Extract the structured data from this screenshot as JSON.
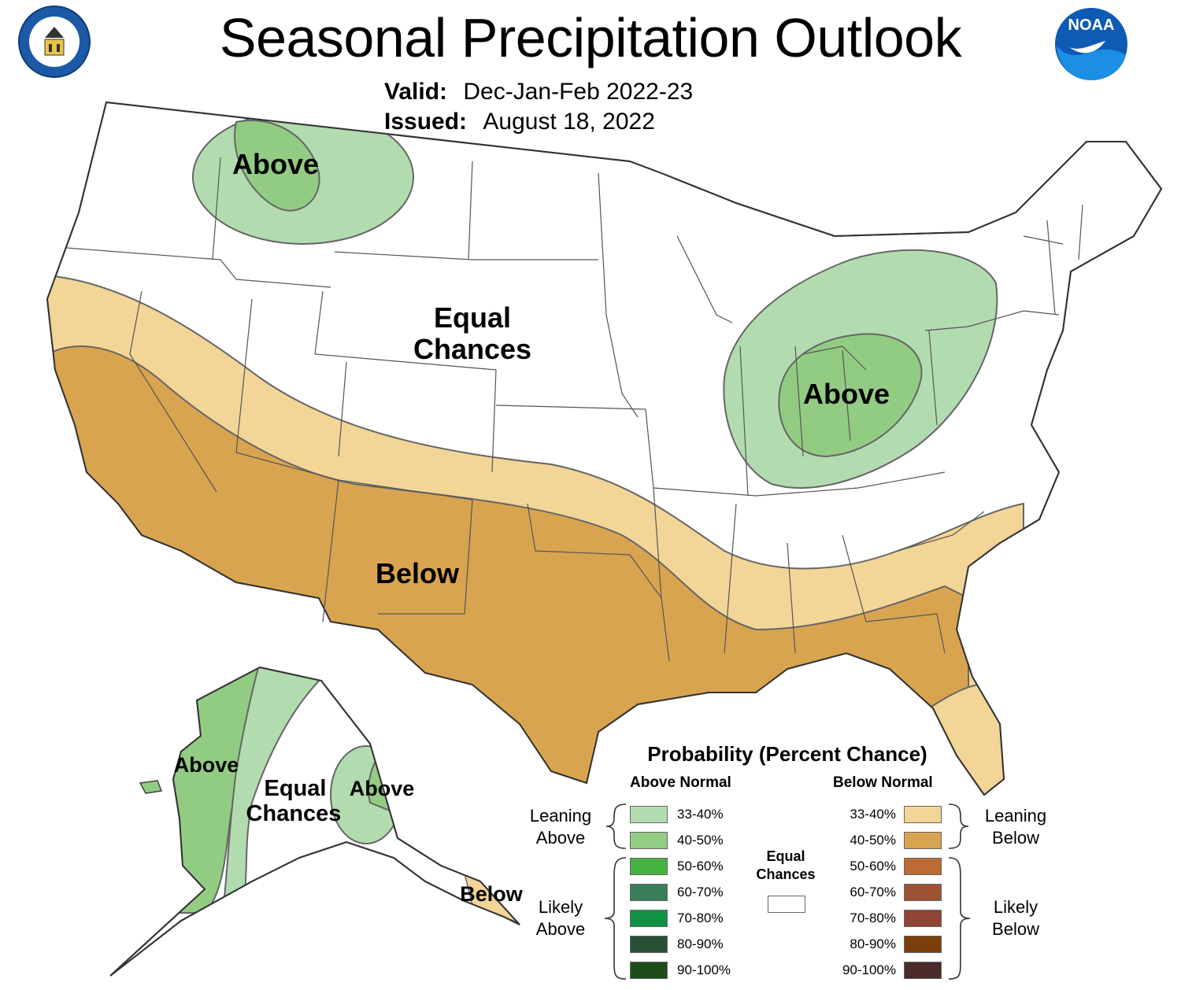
{
  "header": {
    "title": "Seasonal Precipitation Outlook",
    "valid_label": "Valid:",
    "valid_value": "Dec-Jan-Feb 2022-23",
    "issued_label": "Issued:",
    "issued_value": "August 18, 2022"
  },
  "logos": {
    "commerce_seal_text": "DEPARTMENT OF COMMERCE · UNITED STATES OF AMERICA",
    "noaa_text": "NOAA"
  },
  "map": {
    "labels": {
      "northwest_above": "Above",
      "central_equal_1": "Equal",
      "central_equal_2": "Chances",
      "ohio_valley_above": "Above",
      "south_below": "Below",
      "alaska_west_above": "Above",
      "alaska_equal_1": "Equal",
      "alaska_equal_2": "Chances",
      "alaska_east_above": "Above",
      "alaska_se_below": "Below"
    },
    "colors": {
      "above_33_40": "#b3dbb0",
      "above_40_50": "#92cc83",
      "below_33_40": "#f2d597",
      "below_40_50": "#d9a450",
      "equal_chances": "#ffffff",
      "border": "#555555"
    }
  },
  "legend": {
    "title": "Probability (Percent Chance)",
    "above_header": "Above Normal",
    "below_header": "Below Normal",
    "leaning_above": [
      "Leaning",
      "Above"
    ],
    "likely_above": [
      "Likely",
      "Above"
    ],
    "leaning_below": [
      "Leaning",
      "Below"
    ],
    "likely_below": [
      "Likely",
      "Below"
    ],
    "equal_chances": [
      "Equal",
      "Chances"
    ],
    "above_rows": [
      {
        "label": "33-40%",
        "color": "#b3dbb0"
      },
      {
        "label": "40-50%",
        "color": "#92cc83"
      },
      {
        "label": "50-60%",
        "color": "#47b043"
      },
      {
        "label": "60-70%",
        "color": "#3a7d5a"
      },
      {
        "label": "70-80%",
        "color": "#119245"
      },
      {
        "label": "80-90%",
        "color": "#285036"
      },
      {
        "label": "90-100%",
        "color": "#1d4c1a"
      }
    ],
    "below_rows": [
      {
        "label": "33-40%",
        "color": "#f2d597"
      },
      {
        "label": "40-50%",
        "color": "#d9a450"
      },
      {
        "label": "50-60%",
        "color": "#bb6c35"
      },
      {
        "label": "60-70%",
        "color": "#9d5333"
      },
      {
        "label": "70-80%",
        "color": "#8f4434"
      },
      {
        "label": "80-90%",
        "color": "#7b3f0b"
      },
      {
        "label": "90-100%",
        "color": "#4a2a2a"
      }
    ]
  }
}
